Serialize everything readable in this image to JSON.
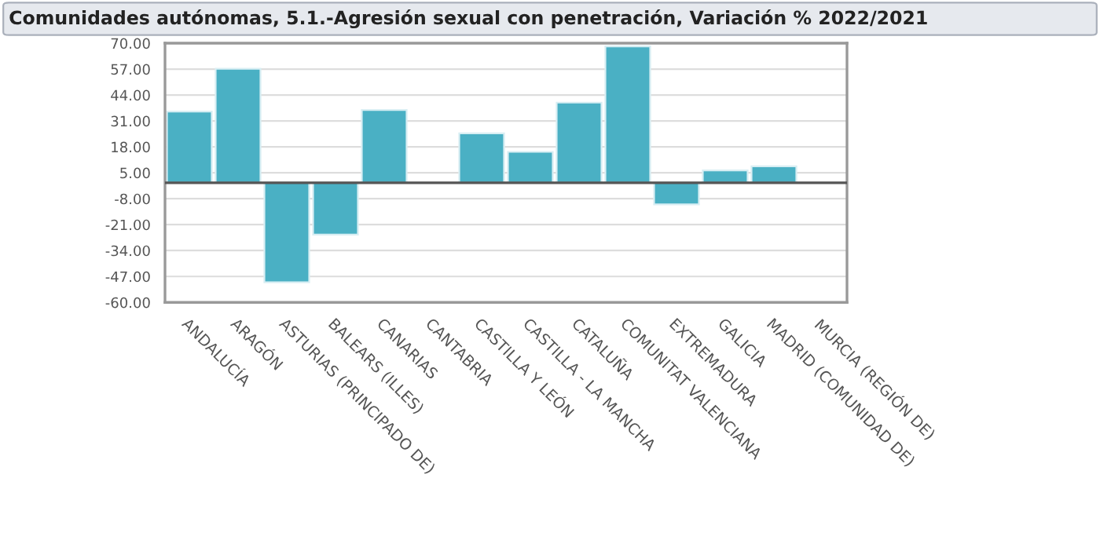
{
  "chart_data": {
    "type": "bar",
    "title": "Comunidades autónomas, 5.1.-Agresión sexual con penetración, Variación % 2022/2021",
    "categories": [
      "ANDALUCÍA",
      "ARAGÓN",
      "ASTURIAS (PRINCIPADO DE)",
      "BALEARS (ILLES)",
      "CANARIAS",
      "CANTABRIA",
      "CASTILLA Y LEÓN",
      "CASTILLA - LA MANCHA",
      "CATALUÑA",
      "COMUNITAT VALENCIANA",
      "EXTREMADURA",
      "GALICIA",
      "MADRID (COMUNIDAD DE)",
      "MURCIA (REGIÓN DE)"
    ],
    "values": [
      35.7,
      57.2,
      -49.9,
      -26,
      36.5,
      null,
      24.8,
      15.5,
      40.2,
      68.4,
      -10.8,
      6.2,
      8.3,
      null
    ],
    "color": "#4ab0c4",
    "ylim": [
      -60,
      70
    ],
    "yticks": [
      {
        "value": -60,
        "label": "-60.00"
      },
      {
        "value": -47,
        "label": "-47.00"
      },
      {
        "value": -34,
        "label": "-34.00"
      },
      {
        "value": -21,
        "label": "-21.00"
      },
      {
        "value": -8,
        "label": "-8.00"
      },
      {
        "value": 5,
        "label": "5.00"
      },
      {
        "value": 18,
        "label": "18.00"
      },
      {
        "value": 31,
        "label": "31.00"
      },
      {
        "value": 44,
        "label": "44.00"
      },
      {
        "value": 57,
        "label": "57.00"
      },
      {
        "value": 70,
        "label": "70.00"
      }
    ],
    "ref_lines": [
      {
        "axis": "y",
        "value": 0,
        "color": "#555555"
      }
    ],
    "grid": "y"
  }
}
